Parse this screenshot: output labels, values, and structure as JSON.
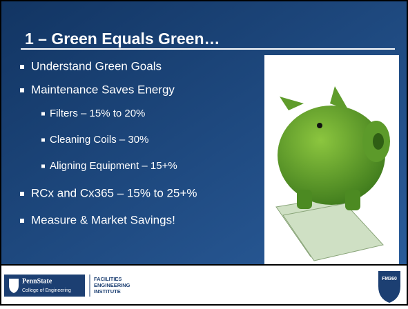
{
  "slide": {
    "title": "1 – Green Equals Green…",
    "bullets": [
      {
        "text": "Understand Green Goals",
        "level": 1
      },
      {
        "text": "Maintenance Saves Energy",
        "level": 1
      },
      {
        "text": "Filters – 15% to 20%",
        "level": 2
      },
      {
        "text": "Cleaning Coils – 30%",
        "level": 2
      },
      {
        "text": "Aligning Equipment – 15+%",
        "level": 2
      },
      {
        "text": "RCx and Cx365 – 15% to 25+%",
        "level": 1
      },
      {
        "text": "Measure & Market Savings!",
        "level": 1
      }
    ]
  },
  "footer": {
    "university": "PennState",
    "college": "College of Engineering",
    "institute": [
      "FACILITIES",
      "ENGINEERING",
      "INSTITUTE"
    ],
    "badge": "FM360"
  }
}
